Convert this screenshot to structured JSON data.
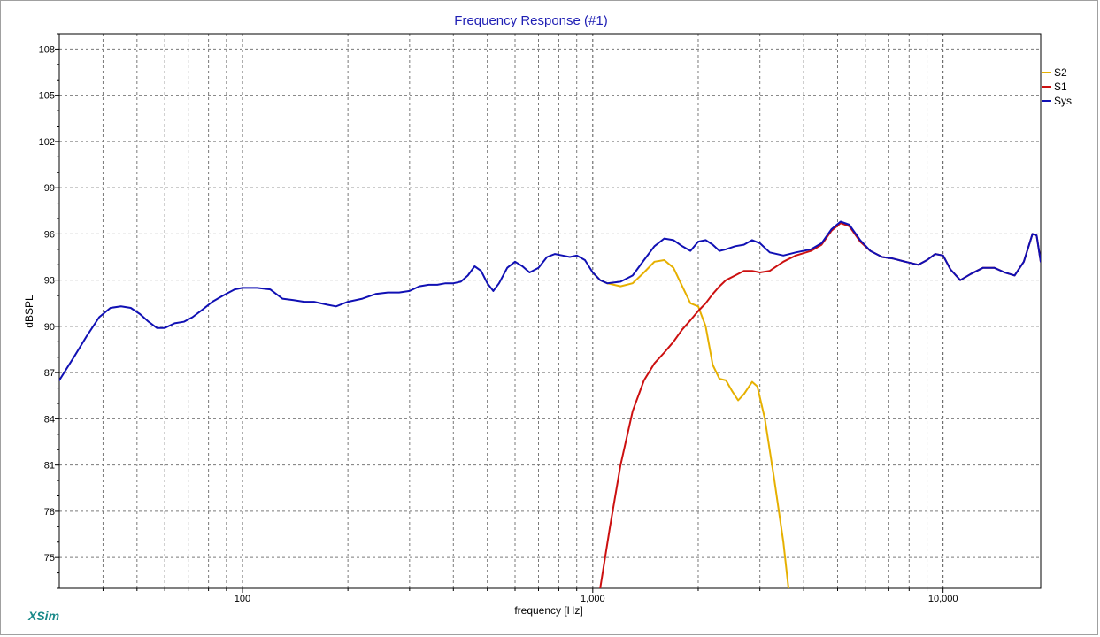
{
  "app": {
    "brand": "XSim"
  },
  "chart_data": {
    "type": "line",
    "title": "Frequency Response (#1)",
    "xlabel": "frequency [Hz]",
    "ylabel": "dBSPL",
    "x_scale": "log",
    "xlim": [
      30,
      19000
    ],
    "ylim": [
      73,
      109
    ],
    "y_ticks": [
      75,
      78,
      81,
      84,
      87,
      90,
      93,
      96,
      99,
      102,
      105,
      108
    ],
    "y_tick_labels": [
      "75",
      "78",
      "81",
      "84",
      "87",
      "90",
      "93",
      "96",
      "99",
      "102",
      "105",
      "108"
    ],
    "x_major_ticks": [
      100,
      1000,
      10000
    ],
    "x_tick_labels": [
      "100",
      "1,000",
      "10,000"
    ],
    "grid": true,
    "legend_position": "top-right",
    "series": [
      {
        "name": "S2",
        "color": "#e6b000",
        "points": [
          [
            1000,
            93.5
          ],
          [
            1050,
            93.0
          ],
          [
            1100,
            92.8
          ],
          [
            1200,
            92.6
          ],
          [
            1300,
            92.8
          ],
          [
            1400,
            93.5
          ],
          [
            1500,
            94.2
          ],
          [
            1600,
            94.3
          ],
          [
            1700,
            93.8
          ],
          [
            1800,
            92.6
          ],
          [
            1900,
            91.5
          ],
          [
            2000,
            91.3
          ],
          [
            2100,
            90.0
          ],
          [
            2200,
            87.5
          ],
          [
            2300,
            86.6
          ],
          [
            2400,
            86.5
          ],
          [
            2500,
            85.8
          ],
          [
            2600,
            85.2
          ],
          [
            2700,
            85.6
          ],
          [
            2850,
            86.4
          ],
          [
            2950,
            86.1
          ],
          [
            3100,
            84.0
          ],
          [
            3300,
            80.0
          ],
          [
            3500,
            76.0
          ],
          [
            3620,
            73.0
          ]
        ]
      },
      {
        "name": "S1",
        "color": "#cc1010",
        "points": [
          [
            1050,
            73.0
          ],
          [
            1120,
            77.0
          ],
          [
            1200,
            81.0
          ],
          [
            1300,
            84.5
          ],
          [
            1400,
            86.5
          ],
          [
            1500,
            87.6
          ],
          [
            1600,
            88.3
          ],
          [
            1700,
            89.0
          ],
          [
            1800,
            89.8
          ],
          [
            1900,
            90.4
          ],
          [
            2000,
            91.0
          ],
          [
            2100,
            91.5
          ],
          [
            2200,
            92.1
          ],
          [
            2300,
            92.6
          ],
          [
            2400,
            93.0
          ],
          [
            2550,
            93.3
          ],
          [
            2700,
            93.6
          ],
          [
            2850,
            93.6
          ],
          [
            3000,
            93.5
          ],
          [
            3200,
            93.6
          ],
          [
            3500,
            94.2
          ],
          [
            3800,
            94.6
          ],
          [
            4200,
            94.9
          ],
          [
            4500,
            95.3
          ],
          [
            4800,
            96.2
          ],
          [
            5100,
            96.7
          ],
          [
            5400,
            96.5
          ],
          [
            5800,
            95.5
          ],
          [
            6200,
            94.9
          ],
          [
            6700,
            94.5
          ],
          [
            7200,
            94.4
          ],
          [
            7800,
            94.2
          ],
          [
            8500,
            94.0
          ],
          [
            9000,
            94.3
          ],
          [
            9500,
            94.7
          ],
          [
            10000,
            94.6
          ],
          [
            10500,
            93.7
          ],
          [
            11200,
            93.0
          ],
          [
            12000,
            93.4
          ],
          [
            13000,
            93.8
          ],
          [
            14000,
            93.8
          ],
          [
            15000,
            93.5
          ],
          [
            16000,
            93.3
          ],
          [
            17000,
            94.2
          ],
          [
            18000,
            96.0
          ],
          [
            18500,
            95.9
          ],
          [
            19000,
            94.2
          ]
        ]
      },
      {
        "name": "Sys",
        "color": "#1010b4",
        "points": [
          [
            30,
            86.5
          ],
          [
            33,
            88.0
          ],
          [
            36,
            89.4
          ],
          [
            39,
            90.6
          ],
          [
            42,
            91.2
          ],
          [
            45,
            91.3
          ],
          [
            48,
            91.2
          ],
          [
            51,
            90.8
          ],
          [
            54,
            90.3
          ],
          [
            57,
            89.9
          ],
          [
            60,
            89.9
          ],
          [
            64,
            90.2
          ],
          [
            68,
            90.3
          ],
          [
            72,
            90.6
          ],
          [
            77,
            91.1
          ],
          [
            82,
            91.6
          ],
          [
            88,
            92.0
          ],
          [
            95,
            92.4
          ],
          [
            100,
            92.5
          ],
          [
            110,
            92.5
          ],
          [
            120,
            92.4
          ],
          [
            130,
            91.8
          ],
          [
            140,
            91.7
          ],
          [
            150,
            91.6
          ],
          [
            160,
            91.6
          ],
          [
            175,
            91.4
          ],
          [
            185,
            91.3
          ],
          [
            200,
            91.6
          ],
          [
            220,
            91.8
          ],
          [
            240,
            92.1
          ],
          [
            260,
            92.2
          ],
          [
            280,
            92.2
          ],
          [
            300,
            92.3
          ],
          [
            320,
            92.6
          ],
          [
            340,
            92.7
          ],
          [
            360,
            92.7
          ],
          [
            380,
            92.8
          ],
          [
            400,
            92.8
          ],
          [
            420,
            92.9
          ],
          [
            440,
            93.3
          ],
          [
            460,
            93.9
          ],
          [
            480,
            93.6
          ],
          [
            500,
            92.8
          ],
          [
            520,
            92.3
          ],
          [
            540,
            92.8
          ],
          [
            570,
            93.8
          ],
          [
            600,
            94.2
          ],
          [
            630,
            93.9
          ],
          [
            660,
            93.5
          ],
          [
            700,
            93.8
          ],
          [
            740,
            94.5
          ],
          [
            780,
            94.7
          ],
          [
            820,
            94.6
          ],
          [
            860,
            94.5
          ],
          [
            900,
            94.6
          ],
          [
            950,
            94.3
          ],
          [
            1000,
            93.5
          ],
          [
            1050,
            93.0
          ],
          [
            1100,
            92.8
          ],
          [
            1200,
            92.9
          ],
          [
            1300,
            93.3
          ],
          [
            1400,
            94.3
          ],
          [
            1500,
            95.2
          ],
          [
            1600,
            95.7
          ],
          [
            1700,
            95.6
          ],
          [
            1800,
            95.2
          ],
          [
            1900,
            94.9
          ],
          [
            2000,
            95.5
          ],
          [
            2100,
            95.6
          ],
          [
            2200,
            95.3
          ],
          [
            2300,
            94.9
          ],
          [
            2400,
            95.0
          ],
          [
            2550,
            95.2
          ],
          [
            2700,
            95.3
          ],
          [
            2850,
            95.6
          ],
          [
            3000,
            95.4
          ],
          [
            3200,
            94.8
          ],
          [
            3500,
            94.6
          ],
          [
            3800,
            94.8
          ],
          [
            4200,
            95.0
          ],
          [
            4500,
            95.4
          ],
          [
            4800,
            96.3
          ],
          [
            5100,
            96.8
          ],
          [
            5400,
            96.6
          ],
          [
            5800,
            95.6
          ],
          [
            6200,
            94.9
          ],
          [
            6700,
            94.5
          ],
          [
            7200,
            94.4
          ],
          [
            7800,
            94.2
          ],
          [
            8500,
            94.0
          ],
          [
            9000,
            94.3
          ],
          [
            9500,
            94.7
          ],
          [
            10000,
            94.6
          ],
          [
            10500,
            93.7
          ],
          [
            11200,
            93.0
          ],
          [
            12000,
            93.4
          ],
          [
            13000,
            93.8
          ],
          [
            14000,
            93.8
          ],
          [
            15000,
            93.5
          ],
          [
            16000,
            93.3
          ],
          [
            17000,
            94.2
          ],
          [
            18000,
            96.0
          ],
          [
            18500,
            95.9
          ],
          [
            19000,
            94.2
          ]
        ]
      }
    ]
  }
}
